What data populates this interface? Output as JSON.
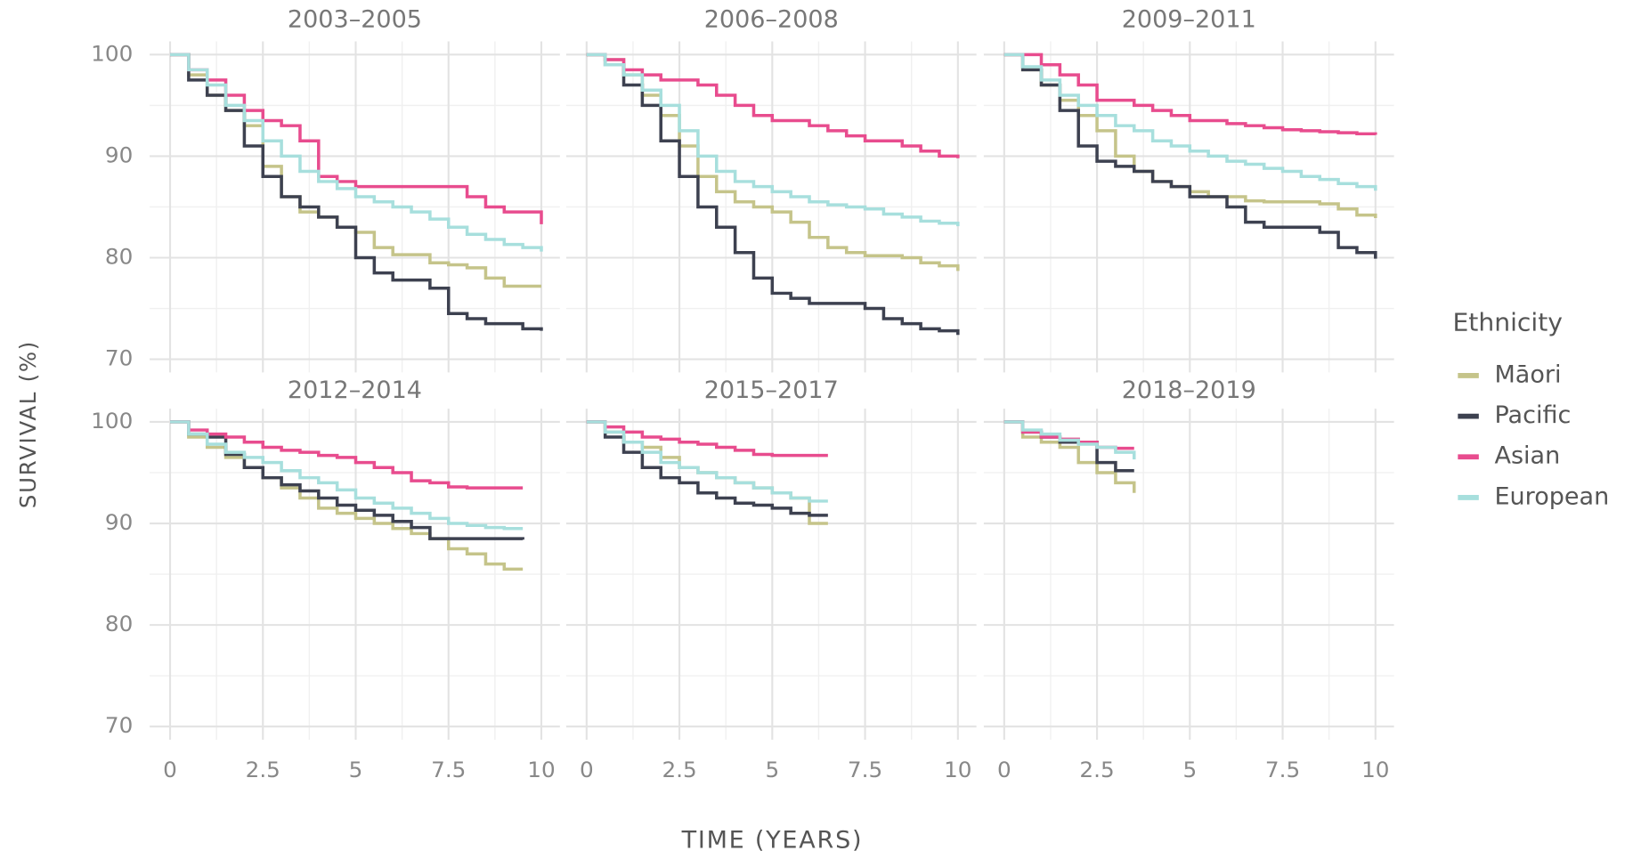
{
  "axis_labels": {
    "x": "TIME (YEARS)",
    "y": "SURVIVAL (%)"
  },
  "legend": {
    "title": "Ethnicity"
  },
  "chart_data": [
    {
      "type": "line",
      "title": "2003–2005",
      "xlim": [
        -0.55,
        10.5
      ],
      "ylim": [
        68.7,
        101.3
      ],
      "xticks": [
        0,
        2.5,
        5,
        7.5,
        10
      ],
      "yticks": [
        70,
        80,
        90,
        100
      ],
      "grid": true,
      "x": [
        0,
        0.5,
        1,
        1.5,
        2,
        2.5,
        3,
        3.5,
        4,
        4.5,
        5,
        5.5,
        6,
        6.5,
        7,
        7.5,
        8,
        8.5,
        9,
        9.5,
        10
      ],
      "series": [
        {
          "name": "Māori",
          "color": "#c5c48a",
          "values": [
            100,
            98,
            96,
            94.5,
            93,
            89,
            86,
            84.5,
            84,
            83,
            82.5,
            81,
            80.3,
            80.3,
            79.5,
            79.3,
            79,
            78,
            77.2,
            77.2,
            77.2
          ]
        },
        {
          "name": "Pacific",
          "color": "#3d4150",
          "values": [
            100,
            97.5,
            96,
            94.5,
            91,
            88,
            86,
            85,
            84,
            83,
            80,
            78.5,
            77.8,
            77.8,
            77,
            74.5,
            74,
            73.5,
            73.5,
            73,
            72.8
          ]
        },
        {
          "name": "Asian",
          "color": "#e84c8e",
          "values": [
            100,
            98.5,
            97.5,
            96,
            94.5,
            93.5,
            93,
            91.5,
            88,
            87.5,
            87,
            87,
            87,
            87,
            87,
            87,
            86,
            85,
            84.5,
            84.5,
            83.3
          ]
        },
        {
          "name": "European",
          "color": "#a7dfdd",
          "values": [
            100,
            98.5,
            97,
            95,
            93.5,
            91.5,
            90,
            88.5,
            87.5,
            86.8,
            86,
            85.5,
            85,
            84.5,
            83.8,
            83,
            82.3,
            81.8,
            81.3,
            81,
            80.6
          ]
        }
      ]
    },
    {
      "type": "line",
      "title": "2006–2008",
      "xlim": [
        -0.55,
        10.5
      ],
      "ylim": [
        68.7,
        101.3
      ],
      "xticks": [
        0,
        2.5,
        5,
        7.5,
        10
      ],
      "yticks": [
        70,
        80,
        90,
        100
      ],
      "grid": true,
      "x": [
        0,
        0.5,
        1,
        1.5,
        2,
        2.5,
        3,
        3.5,
        4,
        4.5,
        5,
        5.5,
        6,
        6.5,
        7,
        7.5,
        8,
        8.5,
        9,
        9.5,
        10
      ],
      "series": [
        {
          "name": "Māori",
          "color": "#c5c48a",
          "values": [
            100,
            99.5,
            98,
            96,
            94,
            91,
            88,
            86.5,
            85.5,
            85,
            84.5,
            83.5,
            82,
            81,
            80.5,
            80.2,
            80.2,
            80,
            79.5,
            79.2,
            78.7
          ]
        },
        {
          "name": "Pacific",
          "color": "#3d4150",
          "values": [
            100,
            99,
            97,
            95,
            91.5,
            88,
            85,
            83,
            80.5,
            78,
            76.5,
            76,
            75.5,
            75.5,
            75.5,
            75,
            74,
            73.5,
            73,
            72.8,
            72.4
          ]
        },
        {
          "name": "Asian",
          "color": "#e84c8e",
          "values": [
            100,
            99.5,
            98.5,
            98,
            97.5,
            97.5,
            97,
            96,
            95,
            94,
            93.5,
            93.5,
            93,
            92.5,
            92,
            91.5,
            91.5,
            91,
            90.5,
            90,
            89.8
          ]
        },
        {
          "name": "European",
          "color": "#a7dfdd",
          "values": [
            100,
            99,
            98,
            96.5,
            95,
            92.5,
            90,
            88.5,
            87.5,
            87,
            86.5,
            86,
            85.5,
            85.2,
            85,
            84.8,
            84.3,
            84,
            83.6,
            83.4,
            83.1
          ]
        }
      ]
    },
    {
      "type": "line",
      "title": "2009–2011",
      "xlim": [
        -0.55,
        10.5
      ],
      "ylim": [
        68.7,
        101.3
      ],
      "xticks": [
        0,
        2.5,
        5,
        7.5,
        10
      ],
      "yticks": [
        70,
        80,
        90,
        100
      ],
      "grid": true,
      "x": [
        0,
        0.5,
        1,
        1.5,
        2,
        2.5,
        3,
        3.5,
        4,
        4.5,
        5,
        5.5,
        6,
        6.5,
        7,
        7.5,
        8,
        8.5,
        9,
        9.5,
        10
      ],
      "series": [
        {
          "name": "Māori",
          "color": "#c5c48a",
          "values": [
            100,
            98.5,
            97,
            95.5,
            94,
            92.5,
            90,
            88.5,
            87.5,
            87,
            86.5,
            86,
            86,
            85.6,
            85.5,
            85.5,
            85.5,
            85.3,
            84.8,
            84.2,
            83.9
          ]
        },
        {
          "name": "Pacific",
          "color": "#3d4150",
          "values": [
            100,
            98.5,
            97,
            94.5,
            91,
            89.5,
            89,
            88.5,
            87.5,
            87,
            86,
            86,
            85,
            83.5,
            83,
            83,
            83,
            82.5,
            81,
            80.5,
            79.9
          ]
        },
        {
          "name": "Asian",
          "color": "#e84c8e",
          "values": [
            100,
            100,
            99,
            98,
            97,
            95.5,
            95.5,
            95,
            94.5,
            94,
            93.5,
            93.5,
            93.2,
            93,
            92.8,
            92.6,
            92.5,
            92.4,
            92.3,
            92.2,
            92.1
          ]
        },
        {
          "name": "European",
          "color": "#a7dfdd",
          "values": [
            100,
            98.8,
            97.5,
            96,
            95,
            94,
            93,
            92.5,
            91.5,
            91,
            90.5,
            90,
            89.5,
            89.2,
            88.8,
            88.5,
            88,
            87.7,
            87.3,
            87,
            86.6
          ]
        }
      ]
    },
    {
      "type": "line",
      "title": "2012–2014",
      "xlim": [
        -0.55,
        10.5
      ],
      "ylim": [
        68.7,
        101.3
      ],
      "xticks": [
        0,
        2.5,
        5,
        7.5,
        10
      ],
      "yticks": [
        70,
        80,
        90,
        100
      ],
      "grid": true,
      "x": [
        0,
        0.5,
        1,
        1.5,
        2,
        2.5,
        3,
        3.5,
        4,
        4.5,
        5,
        5.5,
        6,
        6.5,
        7,
        7.5,
        8,
        8.5,
        9,
        9.5
      ],
      "series": [
        {
          "name": "Māori",
          "color": "#c5c48a",
          "values": [
            100,
            98.5,
            97.5,
            96.5,
            95.5,
            94.5,
            93.5,
            92.5,
            91.5,
            91,
            90.5,
            90,
            89.5,
            89,
            88.5,
            87.5,
            87,
            86,
            85.5,
            85.5
          ]
        },
        {
          "name": "Pacific",
          "color": "#3d4150",
          "values": [
            100,
            98.8,
            98.5,
            96.8,
            95.5,
            94.5,
            93.8,
            93.2,
            92.5,
            91.8,
            91.3,
            90.8,
            90.2,
            89.6,
            88.5,
            88.5,
            88.5,
            88.5,
            88.5,
            88.4
          ]
        },
        {
          "name": "Asian",
          "color": "#e84c8e",
          "values": [
            100,
            99.2,
            98.8,
            98.5,
            98,
            97.5,
            97.2,
            97,
            96.7,
            96.5,
            96,
            95.5,
            95,
            94.2,
            94,
            93.6,
            93.5,
            93.5,
            93.5,
            93.5
          ]
        },
        {
          "name": "European",
          "color": "#a7dfdd",
          "values": [
            100,
            98.8,
            97.8,
            97,
            96.5,
            96,
            95.2,
            94.5,
            94,
            93.3,
            92.5,
            92,
            91.5,
            91,
            90.5,
            90,
            89.8,
            89.6,
            89.5,
            89.5
          ]
        }
      ]
    },
    {
      "type": "line",
      "title": "2015–2017",
      "xlim": [
        -0.55,
        10.5
      ],
      "ylim": [
        68.7,
        101.3
      ],
      "xticks": [
        0,
        2.5,
        5,
        7.5,
        10
      ],
      "yticks": [
        70,
        80,
        90,
        100
      ],
      "grid": true,
      "x": [
        0,
        0.5,
        1,
        1.5,
        2,
        2.5,
        3,
        3.5,
        4,
        4.5,
        5,
        5.5,
        6,
        6.5
      ],
      "series": [
        {
          "name": "Māori",
          "color": "#c5c48a",
          "values": [
            100,
            99,
            98,
            97.5,
            96.5,
            95.5,
            95,
            94.5,
            94,
            93.5,
            93,
            92.5,
            90,
            90
          ]
        },
        {
          "name": "Pacific",
          "color": "#3d4150",
          "values": [
            100,
            98.5,
            97,
            95.5,
            94.5,
            94,
            93,
            92.5,
            92,
            91.8,
            91.5,
            91,
            90.8,
            90.8
          ]
        },
        {
          "name": "Asian",
          "color": "#e84c8e",
          "values": [
            100,
            99.5,
            99,
            98.5,
            98.3,
            98,
            97.8,
            97.5,
            97.2,
            96.8,
            96.7,
            96.7,
            96.7,
            96.7
          ]
        },
        {
          "name": "European",
          "color": "#a7dfdd",
          "values": [
            100,
            99,
            98,
            97,
            96,
            95.5,
            95,
            94.5,
            94,
            93.5,
            93,
            92.5,
            92.2,
            92.2
          ]
        }
      ]
    },
    {
      "type": "line",
      "title": "2018–2019",
      "xlim": [
        -0.55,
        10.5
      ],
      "ylim": [
        68.7,
        101.3
      ],
      "xticks": [
        0,
        2.5,
        5,
        7.5,
        10
      ],
      "yticks": [
        70,
        80,
        90,
        100
      ],
      "grid": true,
      "x": [
        0,
        0.5,
        1,
        1.5,
        2,
        2.5,
        3,
        3.5
      ],
      "series": [
        {
          "name": "Māori",
          "color": "#c5c48a",
          "values": [
            100,
            98.5,
            98,
            97.5,
            96,
            95,
            94,
            93
          ]
        },
        {
          "name": "Pacific",
          "color": "#3d4150",
          "values": [
            100,
            99,
            98.5,
            98,
            98,
            96,
            95.2,
            95.2
          ]
        },
        {
          "name": "Asian",
          "color": "#e84c8e",
          "values": [
            100,
            99,
            98.5,
            98.3,
            98,
            97.5,
            97.4,
            97.4
          ]
        },
        {
          "name": "European",
          "color": "#a7dfdd",
          "values": [
            100,
            99.2,
            98.8,
            98.2,
            97.8,
            97.5,
            97,
            96.3
          ]
        }
      ]
    }
  ]
}
